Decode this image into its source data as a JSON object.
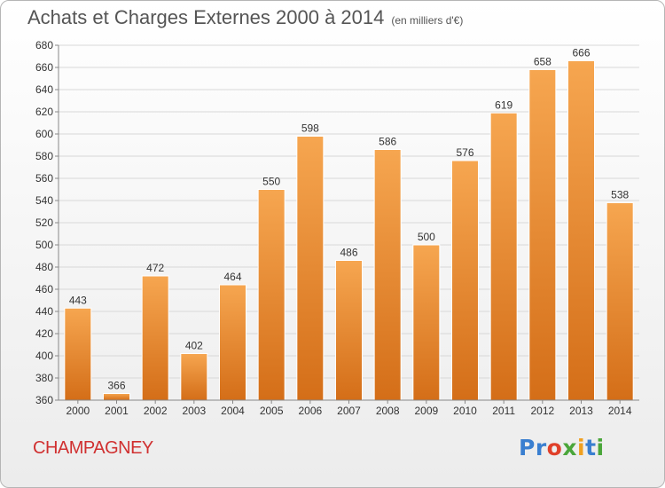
{
  "header": {
    "title": "Achats et Charges Externes 2000 à 2014",
    "subtitle": "(en milliers d'€)"
  },
  "footer": {
    "commune": "CHAMPAGNEY",
    "logo_text": "Proxiti",
    "logo_icon": "proxiti-logo-icon"
  },
  "chart_data": {
    "type": "bar",
    "title": "Achats et Charges Externes 2000 à 2014",
    "subtitle": "(en milliers d'€)",
    "categories": [
      "2000",
      "2001",
      "2002",
      "2003",
      "2004",
      "2005",
      "2006",
      "2007",
      "2008",
      "2009",
      "2010",
      "2011",
      "2012",
      "2013",
      "2014"
    ],
    "values": [
      443,
      366,
      472,
      402,
      464,
      550,
      598,
      486,
      586,
      500,
      576,
      619,
      658,
      666,
      538
    ],
    "ylim": [
      360,
      680
    ],
    "ytick_step": 20,
    "grid": true,
    "colors": {
      "bar_light": "#f6a650",
      "bar_dark": "#d46e18",
      "grid": "#d8d8d8",
      "text": "#333333"
    }
  }
}
